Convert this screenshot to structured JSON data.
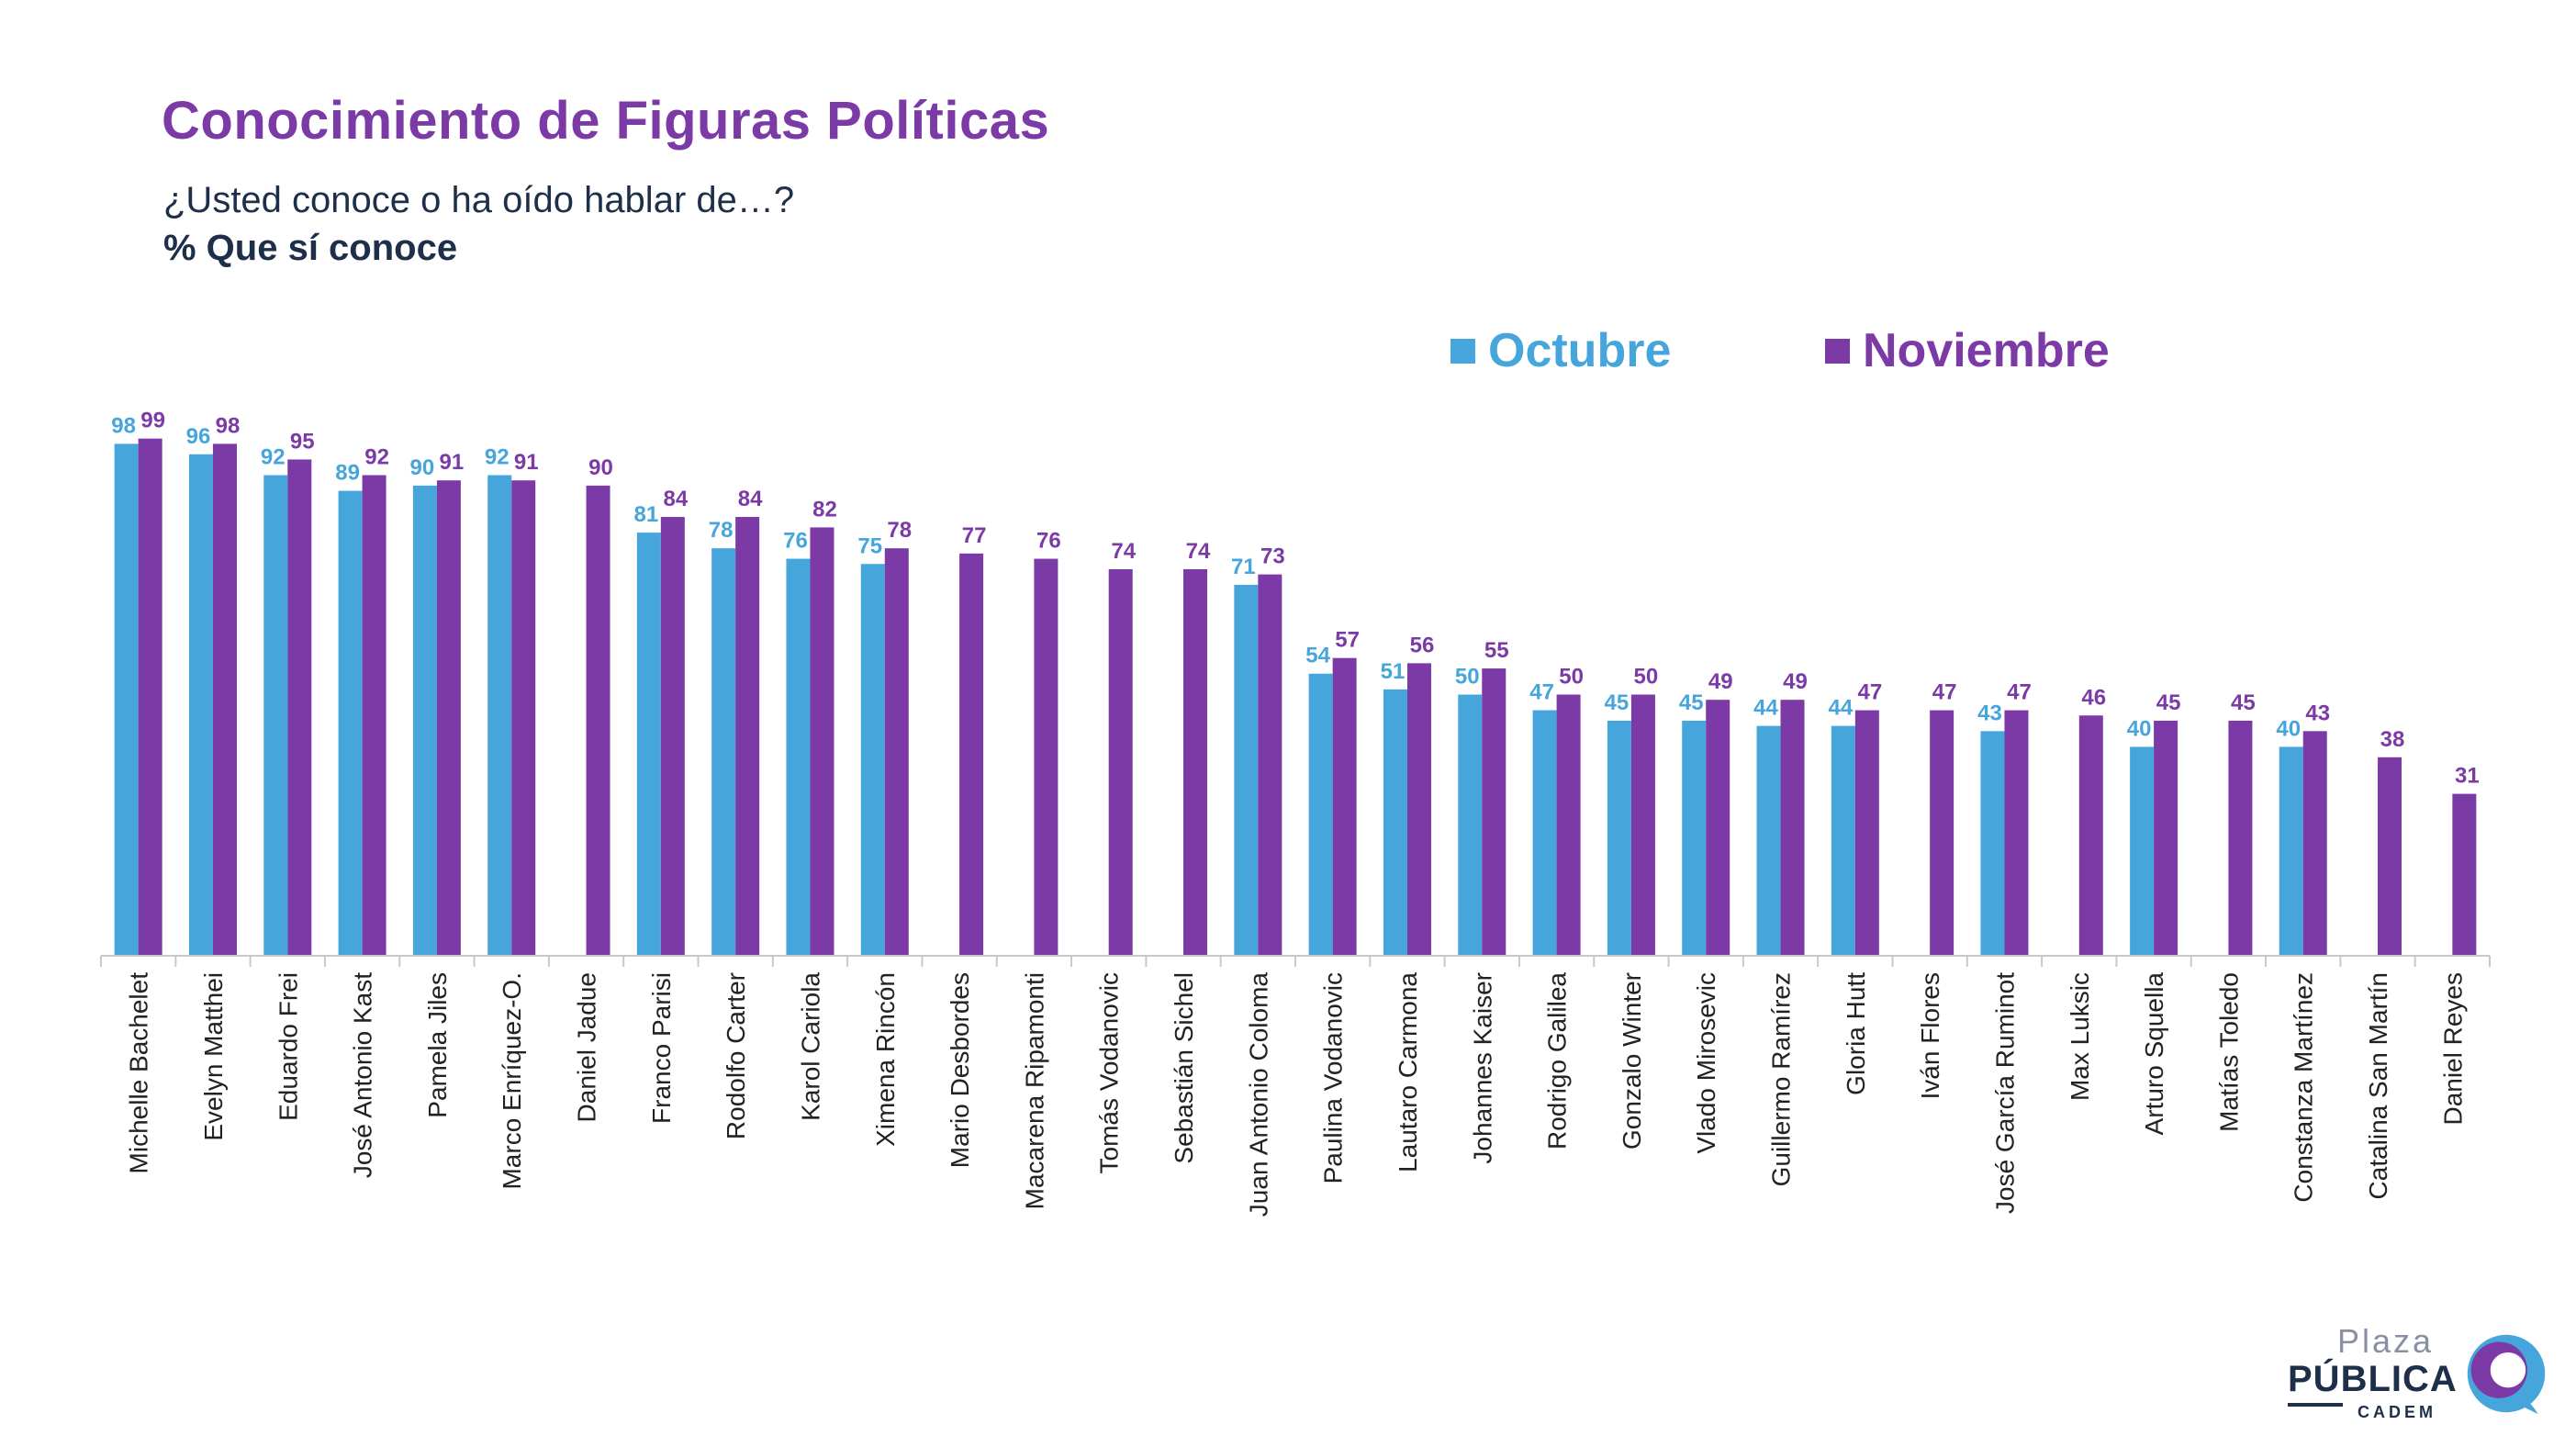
{
  "header": {
    "title": "Conocimiento de Figuras Políticas",
    "subtitle": "¿Usted conoce o ha oído hablar de…?",
    "metric": "% Que sí conoce"
  },
  "colors": {
    "title": "#7b3aa6",
    "text": "#1e2f4a",
    "octubre": "#46a6dc",
    "noviembre": "#7b3aa6",
    "axis": "#c8c8c8"
  },
  "logo": {
    "line1": "Plaza",
    "line2": "PÚBLICA",
    "line3": "CADEM"
  },
  "chart_data": {
    "type": "bar",
    "legend_position": "top-right",
    "grid": false,
    "ylim": [
      0,
      100
    ],
    "categories": [
      "Michelle Bachelet",
      "Evelyn Matthei",
      "Eduardo Frei",
      "José Antonio Kast",
      "Pamela Jiles",
      "Marco Enríquez-O.",
      "Daniel Jadue",
      "Franco Parisi",
      "Rodolfo Carter",
      "Karol Cariola",
      "Ximena Rincón",
      "Mario Desbordes",
      "Macarena Ripamonti",
      "Tomás Vodanovic",
      "Sebastián Sichel",
      "Juan Antonio Coloma",
      "Paulina Vodanovic",
      "Lautaro Carmona",
      "Johannes Kaiser",
      "Rodrigo Galilea",
      "Gonzalo Winter",
      "Vlado Mirosevic",
      "Guillermo Ramírez",
      "Gloria Hutt",
      "Iván Flores",
      "José García Ruminot",
      "Max Luksic",
      "Arturo Squella",
      "Matías Toledo",
      "Constanza Martínez",
      "Catalina San Martín",
      "Daniel Reyes"
    ],
    "series": [
      {
        "name": "Octubre",
        "values": [
          98,
          96,
          92,
          89,
          90,
          92,
          null,
          81,
          78,
          76,
          75,
          null,
          null,
          null,
          null,
          71,
          54,
          51,
          50,
          47,
          45,
          45,
          44,
          44,
          null,
          43,
          null,
          40,
          null,
          40,
          null,
          null
        ]
      },
      {
        "name": "Noviembre",
        "values": [
          99,
          98,
          95,
          92,
          91,
          91,
          90,
          84,
          84,
          82,
          78,
          77,
          76,
          74,
          74,
          73,
          57,
          56,
          55,
          50,
          50,
          49,
          49,
          47,
          47,
          47,
          46,
          45,
          45,
          43,
          38,
          31
        ]
      }
    ]
  }
}
